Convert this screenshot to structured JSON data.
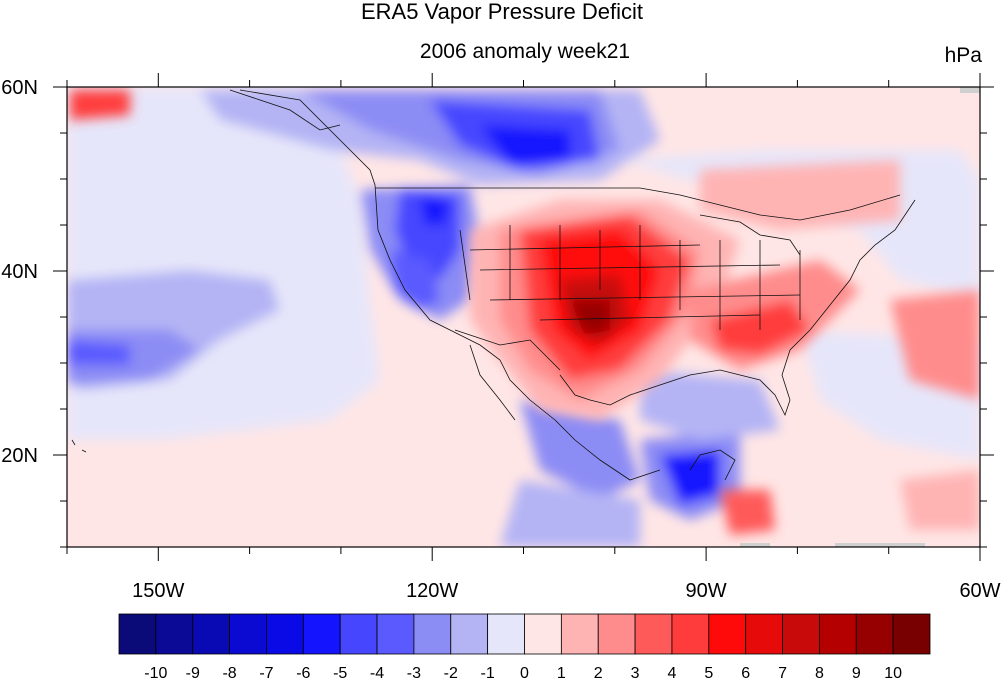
{
  "title": "ERA5 Vapor Pressure Deficit",
  "subtitle": "2006 anomaly week21",
  "units": "hPa",
  "map": {
    "projection": "equirectangular",
    "lon_range": [
      -160,
      -60
    ],
    "lat_range": [
      10,
      60
    ],
    "x_ticks": [
      "150W",
      "120W",
      "90W",
      "60W"
    ],
    "y_ticks": [
      "60N",
      "40N",
      "20N"
    ],
    "colors": {
      "frame": "#000000",
      "land_outline": "#111111",
      "missing": "#d0d0d0"
    }
  },
  "colorbar": {
    "labels": [
      "-10",
      "-9",
      "-8",
      "-7",
      "-6",
      "-5",
      "-4",
      "-3",
      "-2",
      "-1",
      "0",
      "1",
      "2",
      "3",
      "4",
      "5",
      "6",
      "7",
      "8",
      "9",
      "10"
    ],
    "colors": [
      "#0a0a78",
      "#0a0a96",
      "#0a0ab4",
      "#0a0ad2",
      "#0a0ae6",
      "#1414ff",
      "#4646ff",
      "#5a5aff",
      "#8c8cf5",
      "#b4b4f5",
      "#e6e6fa",
      "#ffe6e6",
      "#ffb4b4",
      "#ff8c8c",
      "#ff5a5a",
      "#ff3c3c",
      "#ff0a0a",
      "#e60a0a",
      "#c80a0a",
      "#b40000",
      "#960000",
      "#780000"
    ]
  }
}
